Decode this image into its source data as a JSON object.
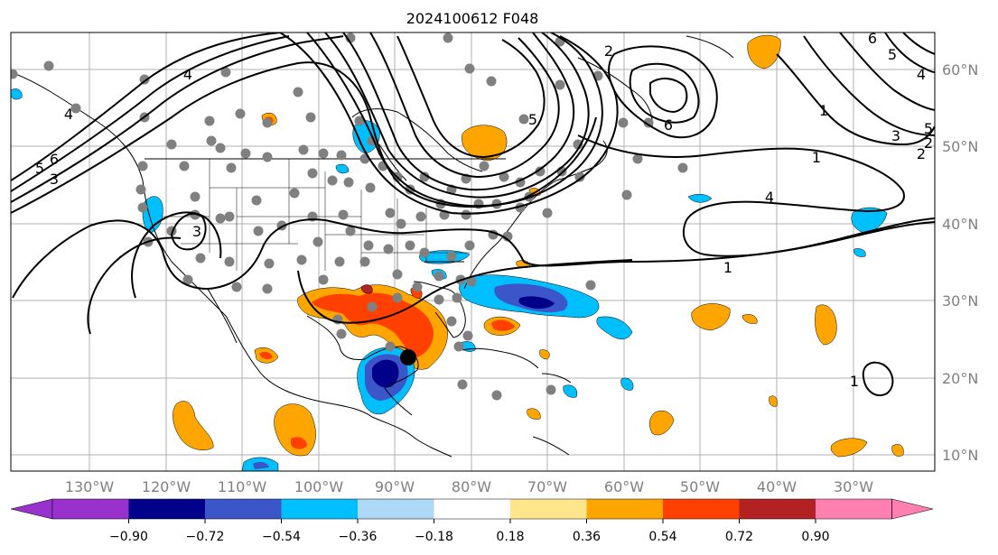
{
  "figure": {
    "title": "2024100612 F048"
  },
  "map": {
    "lon_ticks": [
      "130°W",
      "120°W",
      "110°W",
      "100°W",
      "90°W",
      "80°W",
      "70°W",
      "60°W",
      "50°W",
      "40°W",
      "30°W"
    ],
    "lat_ticks": [
      "60°N",
      "50°N",
      "40°N",
      "30°N",
      "20°N",
      "10°N"
    ],
    "contour_labels": [
      "4",
      "2",
      "6",
      "5",
      "6",
      "5",
      "4",
      "1",
      "3",
      "2",
      "1",
      "4",
      "1",
      "6",
      "5",
      "3",
      "3",
      "1",
      "5",
      "2",
      "4"
    ],
    "gridline_color": "#b0b0b0",
    "marker_color": "#808080"
  },
  "colorbar": {
    "ticks": [
      "−0.90",
      "−0.72",
      "−0.54",
      "−0.36",
      "−0.18",
      "0.18",
      "0.36",
      "0.54",
      "0.72",
      "0.90"
    ],
    "colors": [
      "#9932cc",
      "#00008b",
      "#3a56c8",
      "#00bfff",
      "#add8f6",
      "#ffffff",
      "#ffe68c",
      "#ffa500",
      "#ff4000",
      "#b22222",
      "#ff80b0"
    ]
  }
}
